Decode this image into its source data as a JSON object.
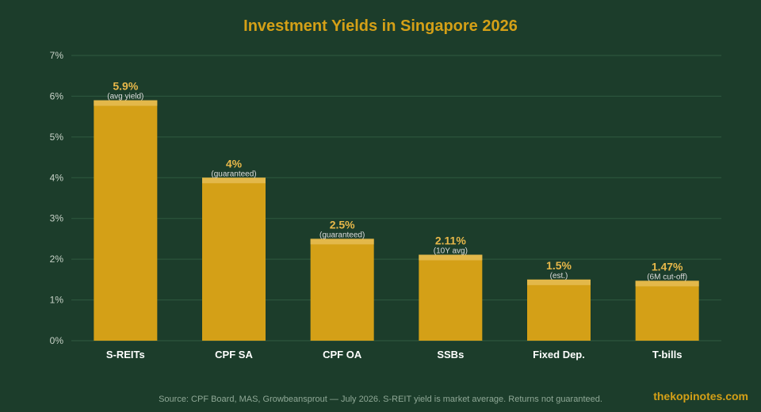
{
  "colors": {
    "background": "#1c3d2b",
    "bar": "#d4a017",
    "bar_top": "#e3b84a",
    "title": "#d4a017",
    "value_label": "#e8b84a",
    "note_label": "#dcdcdc",
    "axis_text": "#c8d2c8",
    "category_text": "#ffffff",
    "grid": "#2f5a40",
    "source_text": "#8fa896",
    "brand_text": "#d4a017"
  },
  "brand": "thekopinotes.com",
  "source": "Source: CPF Board, MAS, Growbeansprout — July 2026. S-REIT yield is market average. Returns not guaranteed.",
  "chart_data": {
    "type": "bar",
    "title": "Investment Yields in Singapore 2026",
    "xlabel": "",
    "ylabel": "",
    "ylim": [
      0,
      7
    ],
    "grid": true,
    "y_ticks": [
      {
        "value": 0,
        "label": "0%"
      },
      {
        "value": 1,
        "label": "1%"
      },
      {
        "value": 2,
        "label": "2%"
      },
      {
        "value": 3,
        "label": "3%"
      },
      {
        "value": 4,
        "label": "4%"
      },
      {
        "value": 5,
        "label": "5%"
      },
      {
        "value": 6,
        "label": "6%"
      },
      {
        "value": 7,
        "label": "7%"
      }
    ],
    "categories": [
      "S-REITs",
      "CPF SA",
      "CPF OA",
      "SSBs",
      "Fixed Dep.",
      "T-bills"
    ],
    "values": [
      5.9,
      4,
      2.5,
      2.11,
      1.5,
      1.47
    ],
    "value_labels": [
      "5.9%",
      "4%",
      "2.5%",
      "2.11%",
      "1.5%",
      "1.47%"
    ],
    "notes": [
      "(avg yield)",
      "(guaranteed)",
      "(guaranteed)",
      "(10Y avg)",
      "(est.)",
      "(6M cut-off)"
    ]
  }
}
